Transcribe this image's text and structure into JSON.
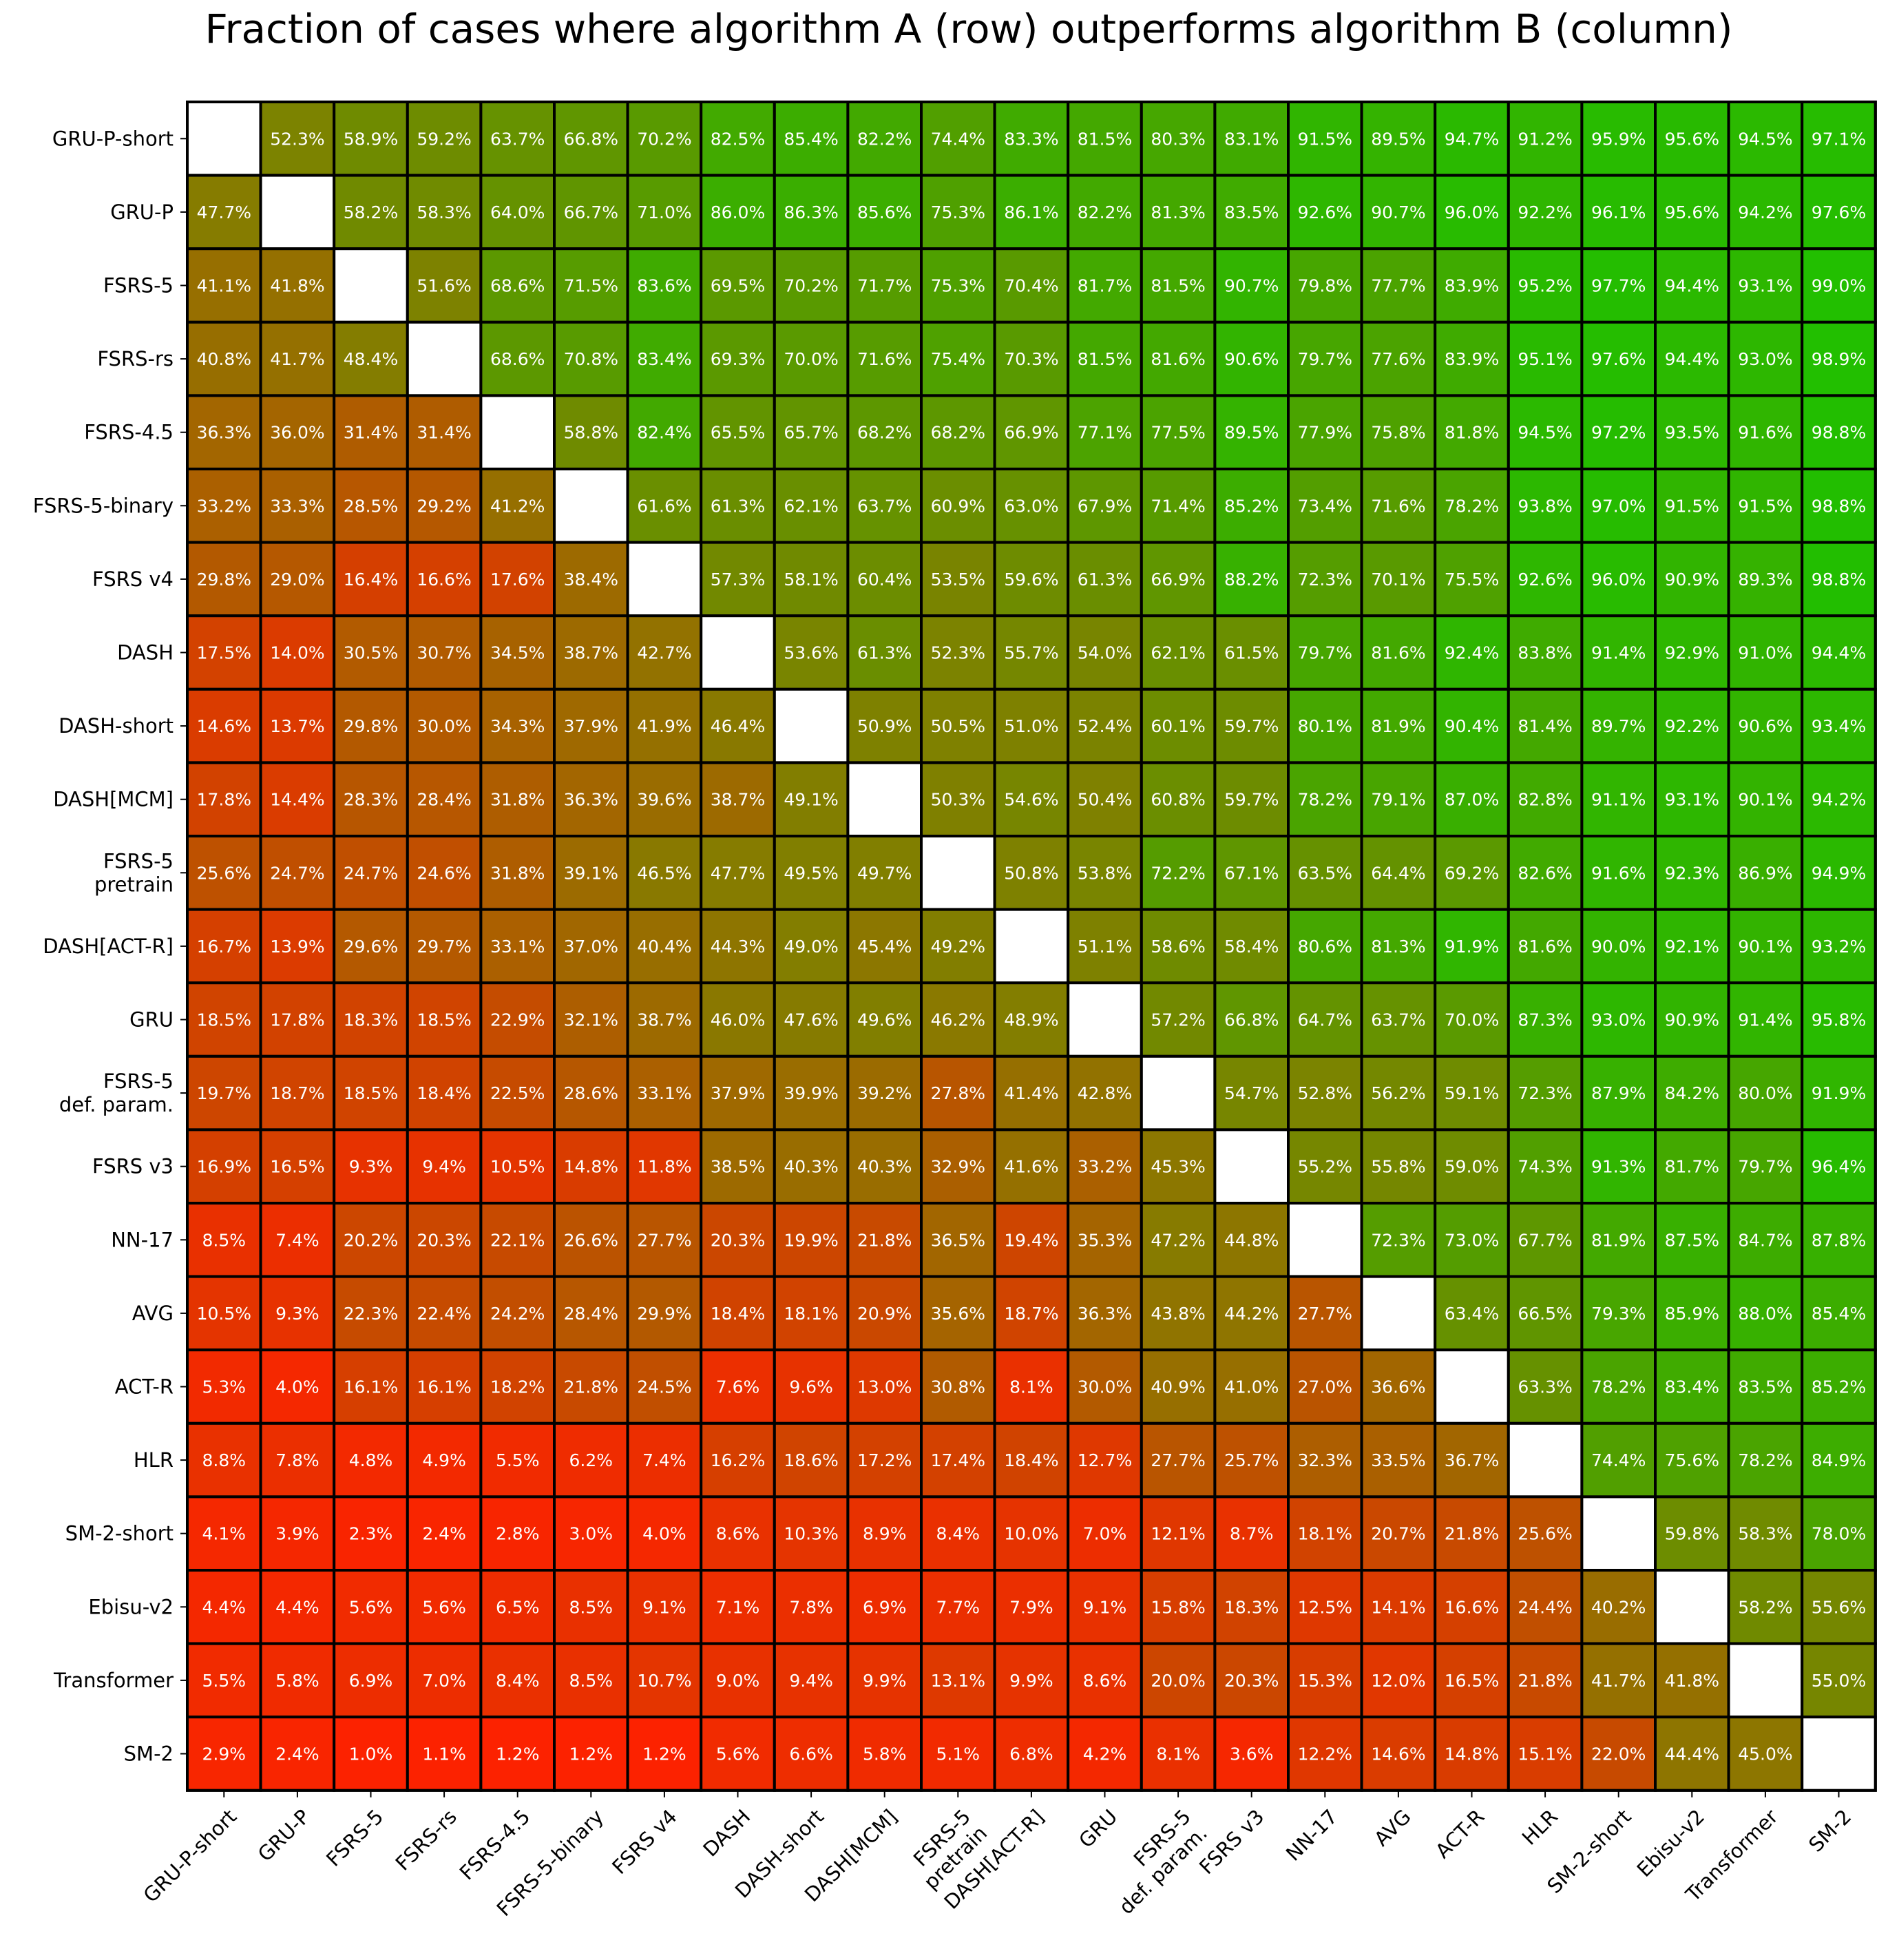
{
  "chart_data": {
    "type": "heatmap",
    "title": "Fraction of cases where algorithm A (row) outperforms algorithm B (column)",
    "rows": [
      "GRU-P-short",
      "GRU-P",
      "FSRS-5",
      "FSRS-rs",
      "FSRS-4.5",
      "FSRS-5-binary",
      "FSRS v4",
      "DASH",
      "DASH-short",
      "DASH[MCM]",
      "FSRS-5\npretrain",
      "DASH[ACT-R]",
      "GRU",
      "FSRS-5\ndef. param.",
      "FSRS v3",
      "NN-17",
      "AVG",
      "ACT-R",
      "HLR",
      "SM-2-short",
      "Ebisu-v2",
      "Transformer",
      "SM-2"
    ],
    "columns": [
      "GRU-P-short",
      "GRU-P",
      "FSRS-5",
      "FSRS-rs",
      "FSRS-4.5",
      "FSRS-5-binary",
      "FSRS v4",
      "DASH",
      "DASH-short",
      "DASH[MCM]",
      "FSRS-5\npretrain",
      "DASH[ACT-R]",
      "GRU",
      "FSRS-5\ndef. param.",
      "FSRS v3",
      "NN-17",
      "AVG",
      "ACT-R",
      "HLR",
      "SM-2-short",
      "Ebisu-v2",
      "Transformer",
      "SM-2"
    ],
    "value_suffix": "%",
    "colormap": {
      "low": "#ff2000",
      "mid": "#808000",
      "high": "#20c000"
    },
    "values": [
      [
        null,
        52.3,
        58.9,
        59.2,
        63.7,
        66.8,
        70.2,
        82.5,
        85.4,
        82.2,
        74.4,
        83.3,
        81.5,
        80.3,
        83.1,
        91.5,
        89.5,
        94.7,
        91.2,
        95.9,
        95.6,
        94.5,
        97.1
      ],
      [
        47.7,
        null,
        58.2,
        58.3,
        64.0,
        66.7,
        71.0,
        86.0,
        86.3,
        85.6,
        75.3,
        86.1,
        82.2,
        81.3,
        83.5,
        92.6,
        90.7,
        96.0,
        92.2,
        96.1,
        95.6,
        94.2,
        97.6
      ],
      [
        41.1,
        41.8,
        null,
        51.6,
        68.6,
        71.5,
        83.6,
        69.5,
        70.2,
        71.7,
        75.3,
        70.4,
        81.7,
        81.5,
        90.7,
        79.8,
        77.7,
        83.9,
        95.2,
        97.7,
        94.4,
        93.1,
        99.0
      ],
      [
        40.8,
        41.7,
        48.4,
        null,
        68.6,
        70.8,
        83.4,
        69.3,
        70.0,
        71.6,
        75.4,
        70.3,
        81.5,
        81.6,
        90.6,
        79.7,
        77.6,
        83.9,
        95.1,
        97.6,
        94.4,
        93.0,
        98.9
      ],
      [
        36.3,
        36.0,
        31.4,
        31.4,
        null,
        58.8,
        82.4,
        65.5,
        65.7,
        68.2,
        68.2,
        66.9,
        77.1,
        77.5,
        89.5,
        77.9,
        75.8,
        81.8,
        94.5,
        97.2,
        93.5,
        91.6,
        98.8
      ],
      [
        33.2,
        33.3,
        28.5,
        29.2,
        41.2,
        null,
        61.6,
        61.3,
        62.1,
        63.7,
        60.9,
        63.0,
        67.9,
        71.4,
        85.2,
        73.4,
        71.6,
        78.2,
        93.8,
        97.0,
        91.5,
        91.5,
        98.8
      ],
      [
        29.8,
        29.0,
        16.4,
        16.6,
        17.6,
        38.4,
        null,
        57.3,
        58.1,
        60.4,
        53.5,
        59.6,
        61.3,
        66.9,
        88.2,
        72.3,
        70.1,
        75.5,
        92.6,
        96.0,
        90.9,
        89.3,
        98.8
      ],
      [
        17.5,
        14.0,
        30.5,
        30.7,
        34.5,
        38.7,
        42.7,
        null,
        53.6,
        61.3,
        52.3,
        55.7,
        54.0,
        62.1,
        61.5,
        79.7,
        81.6,
        92.4,
        83.8,
        91.4,
        92.9,
        91.0,
        94.4
      ],
      [
        14.6,
        13.7,
        29.8,
        30.0,
        34.3,
        37.9,
        41.9,
        46.4,
        null,
        50.9,
        50.5,
        51.0,
        52.4,
        60.1,
        59.7,
        80.1,
        81.9,
        90.4,
        81.4,
        89.7,
        92.2,
        90.6,
        93.4
      ],
      [
        17.8,
        14.4,
        28.3,
        28.4,
        31.8,
        36.3,
        39.6,
        38.7,
        49.1,
        null,
        50.3,
        54.6,
        50.4,
        60.8,
        59.7,
        78.2,
        79.1,
        87.0,
        82.8,
        91.1,
        93.1,
        90.1,
        94.2
      ],
      [
        25.6,
        24.7,
        24.7,
        24.6,
        31.8,
        39.1,
        46.5,
        47.7,
        49.5,
        49.7,
        null,
        50.8,
        53.8,
        72.2,
        67.1,
        63.5,
        64.4,
        69.2,
        82.6,
        91.6,
        92.3,
        86.9,
        94.9
      ],
      [
        16.7,
        13.9,
        29.6,
        29.7,
        33.1,
        37.0,
        40.4,
        44.3,
        49.0,
        45.4,
        49.2,
        null,
        51.1,
        58.6,
        58.4,
        80.6,
        81.3,
        91.9,
        81.6,
        90.0,
        92.1,
        90.1,
        93.2
      ],
      [
        18.5,
        17.8,
        18.3,
        18.5,
        22.9,
        32.1,
        38.7,
        46.0,
        47.6,
        49.6,
        46.2,
        48.9,
        null,
        57.2,
        66.8,
        64.7,
        63.7,
        70.0,
        87.3,
        93.0,
        90.9,
        91.4,
        95.8
      ],
      [
        19.7,
        18.7,
        18.5,
        18.4,
        22.5,
        28.6,
        33.1,
        37.9,
        39.9,
        39.2,
        27.8,
        41.4,
        42.8,
        null,
        54.7,
        52.8,
        56.2,
        59.1,
        72.3,
        87.9,
        84.2,
        80.0,
        91.9
      ],
      [
        16.9,
        16.5,
        9.3,
        9.4,
        10.5,
        14.8,
        11.8,
        38.5,
        40.3,
        40.3,
        32.9,
        41.6,
        33.2,
        45.3,
        null,
        55.2,
        55.8,
        59.0,
        74.3,
        91.3,
        81.7,
        79.7,
        96.4
      ],
      [
        8.5,
        7.4,
        20.2,
        20.3,
        22.1,
        26.6,
        27.7,
        20.3,
        19.9,
        21.8,
        36.5,
        19.4,
        35.3,
        47.2,
        44.8,
        null,
        72.3,
        73.0,
        67.7,
        81.9,
        87.5,
        84.7,
        87.8
      ],
      [
        10.5,
        9.3,
        22.3,
        22.4,
        24.2,
        28.4,
        29.9,
        18.4,
        18.1,
        20.9,
        35.6,
        18.7,
        36.3,
        43.8,
        44.2,
        27.7,
        null,
        63.4,
        66.5,
        79.3,
        85.9,
        88.0,
        85.4
      ],
      [
        5.3,
        4.0,
        16.1,
        16.1,
        18.2,
        21.8,
        24.5,
        7.6,
        9.6,
        13.0,
        30.8,
        8.1,
        30.0,
        40.9,
        41.0,
        27.0,
        36.6,
        null,
        63.3,
        78.2,
        83.4,
        83.5,
        85.2
      ],
      [
        8.8,
        7.8,
        4.8,
        4.9,
        5.5,
        6.2,
        7.4,
        16.2,
        18.6,
        17.2,
        17.4,
        18.4,
        12.7,
        27.7,
        25.7,
        32.3,
        33.5,
        36.7,
        null,
        74.4,
        75.6,
        78.2,
        84.9
      ],
      [
        4.1,
        3.9,
        2.3,
        2.4,
        2.8,
        3.0,
        4.0,
        8.6,
        10.3,
        8.9,
        8.4,
        10.0,
        7.0,
        12.1,
        8.7,
        18.1,
        20.7,
        21.8,
        25.6,
        null,
        59.8,
        58.3,
        78.0
      ],
      [
        4.4,
        4.4,
        5.6,
        5.6,
        6.5,
        8.5,
        9.1,
        7.1,
        7.8,
        6.9,
        7.7,
        7.9,
        9.1,
        15.8,
        18.3,
        12.5,
        14.1,
        16.6,
        24.4,
        40.2,
        null,
        58.2,
        55.6
      ],
      [
        5.5,
        5.8,
        6.9,
        7.0,
        8.4,
        8.5,
        10.7,
        9.0,
        9.4,
        9.9,
        13.1,
        9.9,
        8.6,
        20.0,
        20.3,
        15.3,
        12.0,
        16.5,
        21.8,
        41.7,
        41.8,
        null,
        55.0
      ],
      [
        2.9,
        2.4,
        1.0,
        1.1,
        1.2,
        1.2,
        1.2,
        5.6,
        6.6,
        5.8,
        5.1,
        6.8,
        4.2,
        8.1,
        3.6,
        12.2,
        14.6,
        14.8,
        15.1,
        22.0,
        44.4,
        45.0,
        null
      ]
    ]
  }
}
